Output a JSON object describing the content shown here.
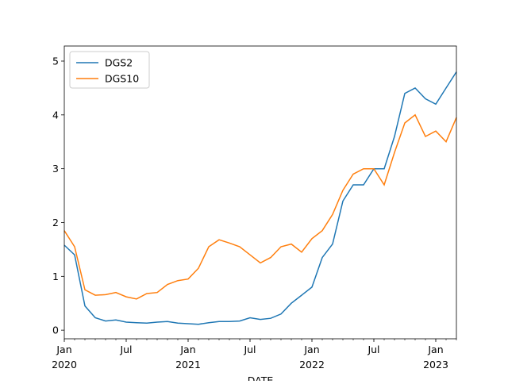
{
  "chart_data": {
    "type": "line",
    "x_label": "DATE",
    "x": [
      "2020-01",
      "2020-02",
      "2020-03",
      "2020-04",
      "2020-05",
      "2020-06",
      "2020-07",
      "2020-08",
      "2020-09",
      "2020-10",
      "2020-11",
      "2020-12",
      "2021-01",
      "2021-02",
      "2021-03",
      "2021-04",
      "2021-05",
      "2021-06",
      "2021-07",
      "2021-08",
      "2021-09",
      "2021-10",
      "2021-11",
      "2021-12",
      "2022-01",
      "2022-02",
      "2022-03",
      "2022-04",
      "2022-05",
      "2022-06",
      "2022-07",
      "2022-08",
      "2022-09",
      "2022-10",
      "2022-11",
      "2022-12",
      "2023-01",
      "2023-02",
      "2023-03"
    ],
    "series": [
      {
        "name": "DGS2",
        "color": "#1f77b4",
        "values": [
          1.58,
          1.4,
          0.45,
          0.23,
          0.17,
          0.19,
          0.15,
          0.14,
          0.13,
          0.15,
          0.16,
          0.13,
          0.12,
          0.11,
          0.14,
          0.16,
          0.16,
          0.17,
          0.23,
          0.2,
          0.22,
          0.3,
          0.5,
          0.65,
          0.8,
          1.35,
          1.6,
          2.4,
          2.7,
          2.7,
          3.0,
          3.0,
          3.6,
          4.4,
          4.5,
          4.3,
          4.2,
          4.5,
          4.8
        ]
      },
      {
        "name": "DGS10",
        "color": "#ff7f0e",
        "values": [
          1.85,
          1.55,
          0.75,
          0.65,
          0.66,
          0.7,
          0.62,
          0.58,
          0.68,
          0.7,
          0.85,
          0.92,
          0.95,
          1.15,
          1.55,
          1.68,
          1.62,
          1.55,
          1.4,
          1.25,
          1.35,
          1.55,
          1.6,
          1.45,
          1.7,
          1.85,
          2.15,
          2.6,
          2.9,
          3.0,
          3.0,
          2.7,
          3.3,
          3.85,
          4.0,
          3.6,
          3.7,
          3.5,
          3.95
        ]
      }
    ],
    "xlim": [
      "2020-01",
      "2023-03"
    ],
    "xticks": [
      {
        "value": "2020-01",
        "label": "Jan",
        "year": "2020"
      },
      {
        "value": "2020-07",
        "label": "Jul"
      },
      {
        "value": "2021-01",
        "label": "Jan",
        "year": "2021"
      },
      {
        "value": "2021-07",
        "label": "Jul"
      },
      {
        "value": "2022-01",
        "label": "Jan",
        "year": "2022"
      },
      {
        "value": "2022-07",
        "label": "Jul"
      },
      {
        "value": "2023-01",
        "label": "Jan",
        "year": "2023"
      }
    ],
    "ylim": [
      -0.16,
      5.28
    ],
    "yticks": [
      0,
      1,
      2,
      3,
      4,
      5
    ],
    "legend": "upper left"
  }
}
